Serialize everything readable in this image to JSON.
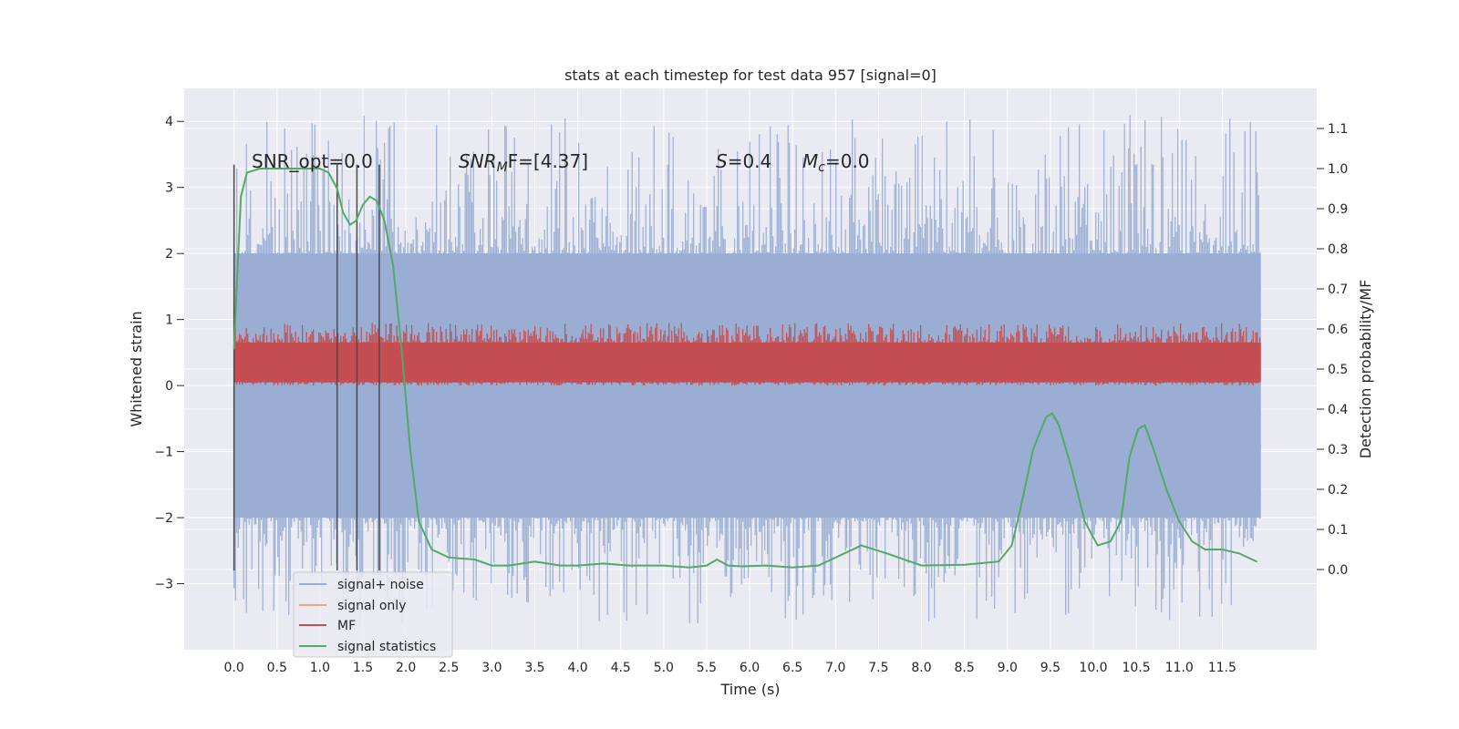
{
  "chart_data": {
    "type": "line",
    "title": "stats at each timestep for test data 957 [signal=0]",
    "xlabel": "Time (s)",
    "ylabel": "Whitened strain",
    "ylabel_right": "Detection probability/MF",
    "xlim": [
      -0.58,
      12.6
    ],
    "ylim": [
      -4.0,
      4.5
    ],
    "ylim_right": [
      -0.2,
      1.2
    ],
    "x_ticks": [
      "0.0",
      "0.5",
      "1.0",
      "1.5",
      "2.0",
      "2.5",
      "3.0",
      "3.5",
      "4.0",
      "4.5",
      "5.0",
      "5.5",
      "6.0",
      "6.5",
      "7.0",
      "7.5",
      "8.0",
      "8.5",
      "9.0",
      "9.5",
      "10.0",
      "10.5",
      "11.0",
      "11.5"
    ],
    "y_ticks_left": [
      "4",
      "3",
      "2",
      "1",
      "0",
      "−1",
      "−2",
      "−3"
    ],
    "y_ticks_right": [
      "1.1",
      "1.0",
      "0.9",
      "0.8",
      "0.7",
      "0.6",
      "0.5",
      "0.4",
      "0.3",
      "0.2",
      "0.1",
      "0.0"
    ],
    "grid": true,
    "legend_placement": "lower-left",
    "annotations": {
      "snr_opt": "SNR_opt=0.0",
      "snr_mf_main": "SNR",
      "snr_mf_sub": "M",
      "snr_mf_rest": "F=[4.37]",
      "s_main": "S",
      "s_rest": "=0.4",
      "mc_main": "M",
      "mc_sub": "c",
      "mc_rest": "=0.0"
    },
    "vertical_lines_x": [
      0.0,
      1.2,
      1.43,
      1.69
    ],
    "series": [
      {
        "name": "signal+ noise",
        "color": "#9aadd3",
        "band": {
          "x_start": 0.0,
          "x_end": 11.95,
          "typical_low": -2.0,
          "typical_high": 2.0,
          "max": 4.1,
          "min": -3.6
        }
      },
      {
        "name": "signal only",
        "color": "#e8a58a",
        "values": []
      },
      {
        "name": "MF",
        "color": "#c44e52",
        "band": {
          "x_start": 0.0,
          "x_end": 11.95,
          "typical_low": 0.05,
          "typical_high": 0.65,
          "max": 0.95,
          "min": 0.0
        }
      },
      {
        "name": "signal statistics",
        "color": "#55a868",
        "x": [
          0.0,
          0.03,
          0.08,
          0.15,
          0.3,
          0.5,
          0.8,
          1.0,
          1.1,
          1.2,
          1.27,
          1.35,
          1.42,
          1.5,
          1.58,
          1.66,
          1.75,
          1.85,
          1.95,
          2.05,
          2.15,
          2.3,
          2.5,
          2.8,
          3.0,
          3.2,
          3.5,
          3.8,
          4.0,
          4.3,
          4.6,
          5.0,
          5.3,
          5.5,
          5.62,
          5.75,
          5.9,
          6.2,
          6.5,
          6.8,
          7.0,
          7.3,
          7.6,
          8.0,
          8.5,
          8.9,
          9.05,
          9.15,
          9.3,
          9.45,
          9.52,
          9.6,
          9.75,
          9.9,
          10.05,
          10.2,
          10.32,
          10.42,
          10.52,
          10.6,
          10.7,
          10.85,
          11.0,
          11.15,
          11.3,
          11.5,
          11.7,
          11.9
        ],
        "values": [
          0.55,
          0.7,
          0.93,
          0.99,
          1.0,
          1.0,
          1.0,
          1.0,
          0.99,
          0.95,
          0.89,
          0.86,
          0.87,
          0.91,
          0.93,
          0.92,
          0.87,
          0.76,
          0.55,
          0.3,
          0.12,
          0.05,
          0.03,
          0.025,
          0.01,
          0.01,
          0.02,
          0.01,
          0.01,
          0.015,
          0.01,
          0.01,
          0.005,
          0.01,
          0.025,
          0.01,
          0.008,
          0.01,
          0.005,
          0.01,
          0.03,
          0.06,
          0.04,
          0.01,
          0.012,
          0.02,
          0.06,
          0.15,
          0.3,
          0.38,
          0.39,
          0.36,
          0.25,
          0.12,
          0.06,
          0.07,
          0.12,
          0.28,
          0.35,
          0.36,
          0.3,
          0.2,
          0.12,
          0.07,
          0.05,
          0.05,
          0.04,
          0.02
        ]
      }
    ]
  }
}
